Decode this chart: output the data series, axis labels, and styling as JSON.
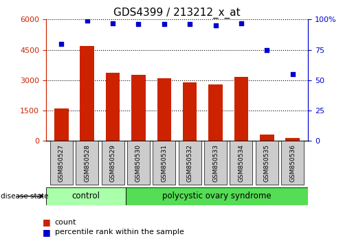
{
  "title": "GDS4399 / 213212_x_at",
  "samples": [
    "GSM850527",
    "GSM850528",
    "GSM850529",
    "GSM850530",
    "GSM850531",
    "GSM850532",
    "GSM850533",
    "GSM850534",
    "GSM850535",
    "GSM850536"
  ],
  "counts": [
    1600,
    4700,
    3350,
    3250,
    3100,
    2900,
    2800,
    3150,
    300,
    150
  ],
  "percentiles": [
    80,
    99,
    97,
    96,
    96,
    96,
    95,
    97,
    75,
    55
  ],
  "ylim_left": [
    0,
    6000
  ],
  "ylim_right": [
    0,
    100
  ],
  "yticks_left": [
    0,
    1500,
    3000,
    4500,
    6000
  ],
  "yticks_right": [
    0,
    25,
    50,
    75,
    100
  ],
  "bar_color": "#cc2200",
  "dot_color": "#0000cc",
  "grid_color": "#000000",
  "control_color": "#aaffaa",
  "pcos_color": "#55dd55",
  "label_bg_color": "#cccccc",
  "control_samples": 3,
  "control_label": "control",
  "pcos_label": "polycystic ovary syndrome",
  "disease_state_label": "disease state",
  "legend_count_label": "count",
  "legend_percentile_label": "percentile rank within the sample",
  "title_fontsize": 11,
  "tick_fontsize": 8,
  "sample_fontsize": 6.5,
  "legend_fontsize": 8,
  "disease_fontsize": 8.5,
  "fig_width": 5.15,
  "fig_height": 3.54,
  "dpi": 100
}
